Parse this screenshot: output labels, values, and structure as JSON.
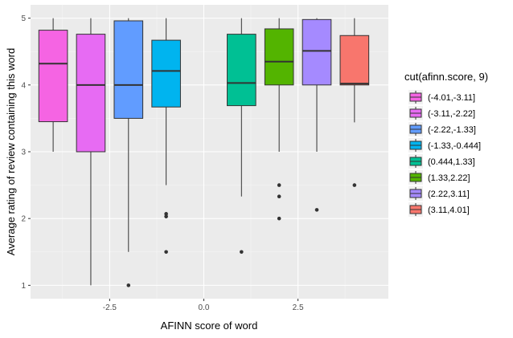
{
  "chart_data": {
    "type": "boxplot",
    "xlabel": "AFINN score of word",
    "ylabel": "Average rating of review containing this word",
    "xlim": [
      -4.6,
      4.9
    ],
    "ylim": [
      0.8,
      5.2
    ],
    "x_ticks": [
      -2.5,
      0.0,
      2.5
    ],
    "x_tick_labels": [
      "-2.5",
      "0.0",
      "2.5"
    ],
    "y_ticks": [
      1,
      2,
      3,
      4,
      5
    ],
    "y_tick_labels": [
      "1",
      "2",
      "3",
      "4",
      "5"
    ],
    "grid": true,
    "legend": {
      "title": "cut(afinn.score, 9)",
      "position": "right"
    },
    "series": [
      {
        "name": "(-4.01,-3.11]",
        "color": "#F564E3",
        "x": -4,
        "whisker_low": 3.0,
        "q1": 3.45,
        "median": 4.32,
        "q3": 4.82,
        "whisker_high": 5.0,
        "outliers": []
      },
      {
        "name": "(-3.11,-2.22]",
        "color": "#E76BF3",
        "x": -3,
        "whisker_low": 1.0,
        "q1": 3.0,
        "median": 4.0,
        "q3": 4.76,
        "whisker_high": 5.0,
        "outliers": []
      },
      {
        "name": "(-2.22,-1.33]",
        "color": "#619CFF",
        "x": -2,
        "whisker_low": 1.5,
        "q1": 3.5,
        "median": 4.0,
        "q3": 4.96,
        "whisker_high": 5.0,
        "outliers": [
          1.0
        ]
      },
      {
        "name": "(-1.33,-0.444]",
        "color": "#00B4EF",
        "x": -1,
        "whisker_low": 2.5,
        "q1": 3.67,
        "median": 4.21,
        "q3": 4.67,
        "whisker_high": 5.0,
        "outliers": [
          2.07,
          2.03,
          1.5
        ]
      },
      {
        "name": "(0.444,1.33]",
        "color": "#00C094",
        "x": 1,
        "whisker_low": 2.33,
        "q1": 3.69,
        "median": 4.03,
        "q3": 4.76,
        "whisker_high": 5.0,
        "outliers": [
          1.5
        ]
      },
      {
        "name": "(1.33,2.22]",
        "color": "#53B400",
        "x": 2,
        "whisker_low": 3.0,
        "q1": 4.0,
        "median": 4.35,
        "q3": 4.84,
        "whisker_high": 5.0,
        "outliers": [
          2.5,
          2.33,
          2.0
        ]
      },
      {
        "name": "(2.22,3.11]",
        "color": "#A58AFF",
        "x": 3,
        "whisker_low": 3.0,
        "q1": 4.0,
        "median": 4.51,
        "q3": 4.98,
        "whisker_high": 5.0,
        "outliers": [
          2.13
        ]
      },
      {
        "name": "(3.11,4.01]",
        "color": "#F8766D",
        "x": 4,
        "whisker_low": 3.44,
        "q1": 4.0,
        "median": 4.02,
        "q3": 4.74,
        "whisker_high": 5.0,
        "outliers": [
          2.5
        ]
      }
    ]
  }
}
